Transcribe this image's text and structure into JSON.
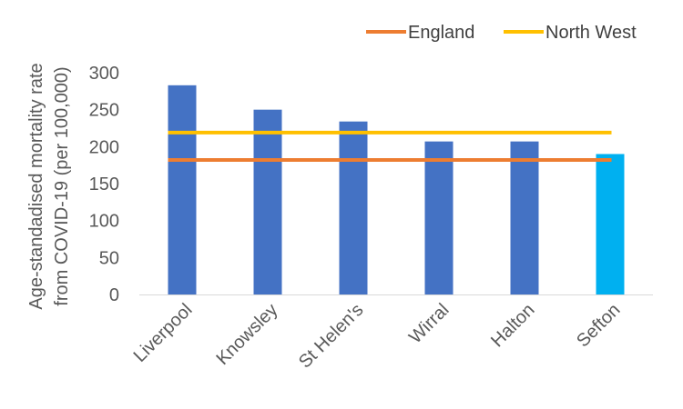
{
  "chart_data": {
    "type": "bar",
    "title": "",
    "xlabel": "",
    "ylabel": "Age-standadised mortality  rate from COVID-19 (per 100,000)",
    "ylabel_lines": [
      "Age-standadised mortality  rate",
      "from COVID-19 (per 100,000)"
    ],
    "categories": [
      "Liverpool",
      "Knowsley",
      "St Helen's",
      "Wirral",
      "Halton",
      "Sefton"
    ],
    "values": [
      283,
      250,
      234,
      207,
      207,
      190
    ],
    "bar_colors": [
      "#4472C4",
      "#4472C4",
      "#4472C4",
      "#4472C4",
      "#4472C4",
      "#00B0F0"
    ],
    "reference_lines": [
      {
        "name": "England",
        "value": 182,
        "color": "#ED7D31"
      },
      {
        "name": "North West",
        "value": 219,
        "color": "#FFC000"
      }
    ],
    "ylim": [
      0,
      300
    ],
    "yticks": [
      0,
      50,
      100,
      150,
      200,
      250,
      300
    ],
    "legend_position": "top-right",
    "grid": false
  }
}
